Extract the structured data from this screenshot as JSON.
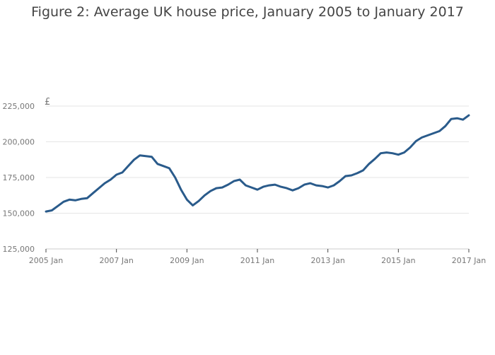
{
  "chart_data": {
    "type": "line",
    "title": "Figure 2: Average UK house price, January 2005 to January 2017",
    "ylabel": "£",
    "xlabel": "",
    "ylim": [
      125000,
      225000
    ],
    "yticks": [
      125000,
      150000,
      175000,
      200000,
      225000
    ],
    "ytick_labels": [
      "125,000",
      "150,000",
      "175,000",
      "200,000",
      "225,000"
    ],
    "xlim": [
      "2005-01",
      "2017-01"
    ],
    "xtick_labels": [
      "2005 Jan",
      "2007 Jan",
      "2009 Jan",
      "2011 Jan",
      "2013 Jan",
      "2015 Jan",
      "2017 Jan"
    ],
    "grid": true,
    "series": [
      {
        "color": "#2a5b8b",
        "points": [
          [
            "2005-01",
            151200
          ],
          [
            "2005-03",
            152000
          ],
          [
            "2005-05",
            155000
          ],
          [
            "2005-07",
            158000
          ],
          [
            "2005-09",
            159500
          ],
          [
            "2005-11",
            159000
          ],
          [
            "2006-01",
            160000
          ],
          [
            "2006-03",
            160500
          ],
          [
            "2006-05",
            164000
          ],
          [
            "2006-07",
            167500
          ],
          [
            "2006-09",
            171000
          ],
          [
            "2006-11",
            173500
          ],
          [
            "2007-01",
            177000
          ],
          [
            "2007-03",
            178500
          ],
          [
            "2007-05",
            183000
          ],
          [
            "2007-07",
            187500
          ],
          [
            "2007-09",
            190500
          ],
          [
            "2007-11",
            190000
          ],
          [
            "2008-01",
            189500
          ],
          [
            "2008-03",
            184500
          ],
          [
            "2008-05",
            183000
          ],
          [
            "2008-07",
            181500
          ],
          [
            "2008-09",
            175000
          ],
          [
            "2008-11",
            166500
          ],
          [
            "2009-01",
            159500
          ],
          [
            "2009-03",
            155500
          ],
          [
            "2009-05",
            158500
          ],
          [
            "2009-07",
            162500
          ],
          [
            "2009-09",
            165500
          ],
          [
            "2009-11",
            167500
          ],
          [
            "2010-01",
            168000
          ],
          [
            "2010-03",
            170000
          ],
          [
            "2010-05",
            172500
          ],
          [
            "2010-07",
            173500
          ],
          [
            "2010-09",
            169500
          ],
          [
            "2010-11",
            168000
          ],
          [
            "2011-01",
            166500
          ],
          [
            "2011-03",
            168500
          ],
          [
            "2011-05",
            169500
          ],
          [
            "2011-07",
            170000
          ],
          [
            "2011-09",
            168500
          ],
          [
            "2011-11",
            167500
          ],
          [
            "2012-01",
            166000
          ],
          [
            "2012-03",
            167500
          ],
          [
            "2012-05",
            170000
          ],
          [
            "2012-07",
            171000
          ],
          [
            "2012-09",
            169500
          ],
          [
            "2012-11",
            169000
          ],
          [
            "2013-01",
            168000
          ],
          [
            "2013-03",
            169500
          ],
          [
            "2013-05",
            172500
          ],
          [
            "2013-07",
            176000
          ],
          [
            "2013-09",
            176500
          ],
          [
            "2013-11",
            178000
          ],
          [
            "2014-01",
            180000
          ],
          [
            "2014-03",
            184500
          ],
          [
            "2014-05",
            188000
          ],
          [
            "2014-07",
            192000
          ],
          [
            "2014-09",
            192500
          ],
          [
            "2014-11",
            192000
          ],
          [
            "2015-01",
            191000
          ],
          [
            "2015-03",
            192500
          ],
          [
            "2015-05",
            196000
          ],
          [
            "2015-07",
            200500
          ],
          [
            "2015-09",
            203000
          ],
          [
            "2015-11",
            204500
          ],
          [
            "2016-01",
            206000
          ],
          [
            "2016-03",
            207500
          ],
          [
            "2016-05",
            211000
          ],
          [
            "2016-07",
            216000
          ],
          [
            "2016-09",
            216500
          ],
          [
            "2016-11",
            215500
          ],
          [
            "2017-01",
            218500
          ]
        ]
      }
    ]
  }
}
